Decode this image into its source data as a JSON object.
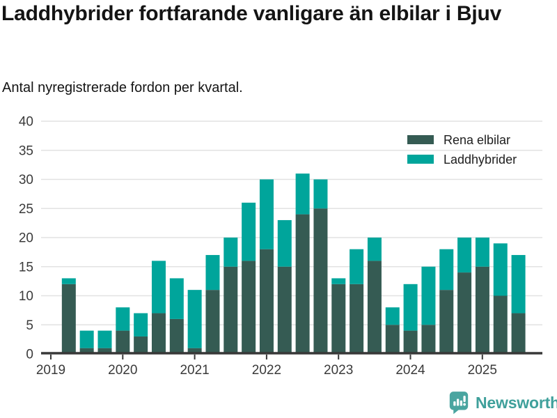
{
  "title": "Laddhybrider fortfarande vanligare än elbilar i Bjuv",
  "subtitle": "Antal nyregistrerade fordon per kvartal.",
  "chart_data": {
    "type": "bar",
    "stacked": true,
    "title": "Laddhybrider fortfarande vanligare än elbilar i Bjuv",
    "subtitle": "Antal nyregistrerade fordon per kvartal.",
    "categories": [
      "2019 Q2",
      "2019 Q3",
      "2019 Q4",
      "2020 Q1",
      "2020 Q2",
      "2020 Q3",
      "2020 Q4",
      "2021 Q1",
      "2021 Q2",
      "2021 Q3",
      "2021 Q4",
      "2022 Q1",
      "2022 Q2",
      "2022 Q3",
      "2022 Q4",
      "2023 Q1",
      "2023 Q2",
      "2023 Q3",
      "2023 Q4",
      "2024 Q1",
      "2024 Q2",
      "2024 Q3",
      "2024 Q4",
      "2025 Q1",
      "2025 Q2",
      "2025 Q3"
    ],
    "series": [
      {
        "name": "Rena elbilar",
        "color": "#355b53",
        "values": [
          12,
          1,
          1,
          4,
          3,
          7,
          6,
          1,
          11,
          15,
          16,
          18,
          15,
          24,
          25,
          12,
          12,
          16,
          5,
          4,
          5,
          11,
          14,
          15,
          10,
          7
        ]
      },
      {
        "name": "Laddhybrider",
        "color": "#00a59b",
        "values": [
          1,
          3,
          3,
          4,
          4,
          9,
          7,
          10,
          6,
          5,
          10,
          12,
          8,
          7,
          5,
          1,
          6,
          4,
          3,
          8,
          10,
          7,
          6,
          5,
          9,
          10
        ]
      }
    ],
    "stack_totals": [
      13,
      4,
      4,
      8,
      7,
      16,
      13,
      11,
      17,
      20,
      26,
      30,
      23,
      31,
      30,
      13,
      18,
      20,
      8,
      12,
      15,
      18,
      20,
      20,
      19,
      17
    ],
    "x_tick_labels": [
      "2019",
      "2020",
      "2021",
      "2022",
      "2023",
      "2024",
      "2025"
    ],
    "y_ticks": [
      0,
      5,
      10,
      15,
      20,
      25,
      30,
      35,
      40
    ],
    "ylim": [
      0,
      40
    ],
    "grid": "horizontal",
    "legend_position": "top-right"
  },
  "footer": {
    "brand_name": "Newsworthy",
    "brand_color": "#3fa09b",
    "logo_color": "#4aa5a0",
    "logo_icon": "speech-bubble-bar-chart-icon"
  },
  "colors": {
    "grid": "#e2e2e2",
    "axis": "#383838",
    "tick_text": "#3a3a3a",
    "title_text": "#141414",
    "background": "#ffffff"
  }
}
